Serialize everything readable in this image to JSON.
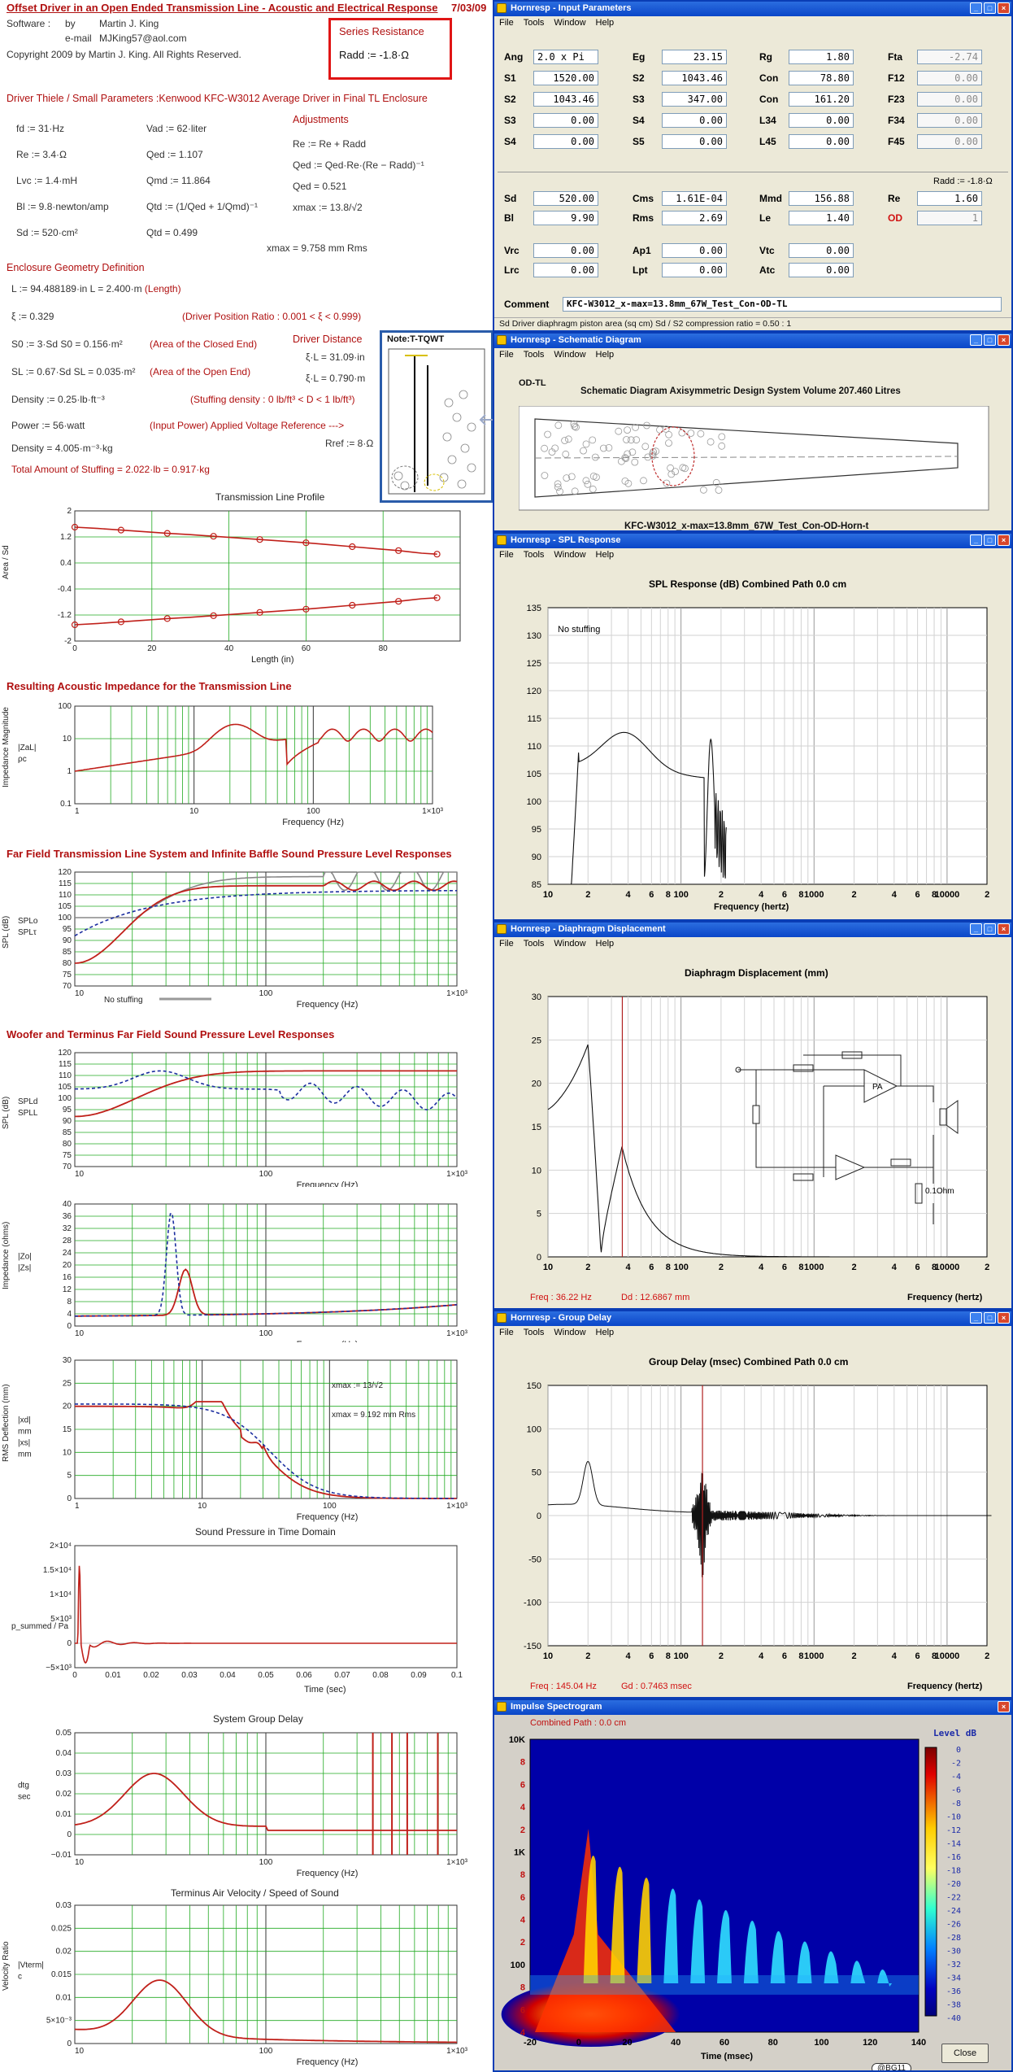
{
  "worksheet": {
    "title": "Offset Driver in an Open Ended Transmission Line - Acoustic and Electrical Response",
    "date": "7/03/09",
    "software_label": "Software :",
    "by_label": "by",
    "author": "Martin J. King",
    "email_label": "e-mail",
    "email": "MJKing57@aol.com",
    "copyright": "Copyright 2009 by Martin J. King. All Rights Reserved.",
    "series_resistance": {
      "label": "Series Resistance",
      "value": "Radd := -1.8·Ω"
    },
    "driver_heading": "Driver Thiele / Small Parameters :Kenwood KFC-W3012 Average Driver in Final TL Enclosure",
    "params_left": [
      "fd := 31·Hz",
      "Re := 3.4·Ω",
      "Lvc := 1.4·mH",
      "Bl := 9.8·newton/amp",
      "Sd := 520·cm²"
    ],
    "params_mid": [
      "Vad := 62·liter",
      "Qed := 1.107",
      "Qmd := 11.864",
      "Qtd := (1/Qed + 1/Qmd)⁻¹",
      "Qtd = 0.499"
    ],
    "adjust_heading": "Adjustments",
    "params_adj": [
      "Re := Re + Radd",
      "Qed := Qed·Re·(Re − Radd)⁻¹",
      "Qed = 0.521",
      "xmax := 13.8/√2",
      "xmax = 9.758    mm    Rms"
    ],
    "geometry_heading": "Enclosure Geometry Definition",
    "geometry": [
      {
        "expr": "L := 94.488189·in    L = 2.400·m",
        "note": "(Length)"
      },
      {
        "expr": "ξ := 0.329",
        "note": "(Driver Position Ratio : 0.001 < ξ < 0.999)"
      },
      {
        "expr": "S0 := 3·Sd    S0 = 0.156·m²",
        "note": "(Area of the Closed End)"
      },
      {
        "expr": "SL := 0.67·Sd    SL = 0.035·m²",
        "note": "(Area of the Open End)"
      },
      {
        "expr": "Density := 0.25·lb·ft⁻³",
        "note": "(Stuffing density : 0 lb/ft³ < D < 1 lb/ft³)"
      },
      {
        "expr": "Power := 56·watt",
        "note": "(Input Power)   Applied Voltage Reference --->"
      },
      {
        "expr": "Density = 4.005·m⁻³·kg",
        "note": ""
      },
      {
        "expr": "Total Amount of Stuffing  = 2.022·lb = 0.917·kg",
        "note": ""
      }
    ],
    "driver_distance": {
      "heading": "Driver Distance",
      "d1": "ξ·L = 31.09·in",
      "d2": "ξ·L = 0.790·m",
      "vref": "Rref := 8·Ω"
    },
    "note_title": "Note:T-TQWT",
    "plots": {
      "tl_profile": {
        "title": "Transmission Line Profile",
        "xlabel": "Length (in)",
        "ylabel": "Area / Sd"
      },
      "impedance": {
        "heading": "Resulting Acoustic Impedance for the Transmission Line",
        "xlabel": "Frequency (Hz)",
        "ylabel": "Impedance Magnitude",
        "ylabel2": "|ZaL| / ρc"
      },
      "far_field": {
        "heading": "Far Field Transmission Line System and Infinite Baffle Sound Pressure Level Responses",
        "xlabel": "Frequency (Hz)",
        "ylabel": "SPL (dB)",
        "legend": "No stuffing"
      },
      "woofer_terminus": {
        "heading": "Woofer and Terminus Far Field Sound Pressure Level Responses",
        "xlabel": "Frequency (Hz)",
        "ylabel": "SPL (dB)"
      },
      "elec_imp": {
        "xlabel": "Frequency (Hz)",
        "ylabel": "Impedance (ohms)"
      },
      "rms_defl": {
        "xlabel": "Frequency (Hz)",
        "ylabel": "RMS Deflection (mm)",
        "note1": "xmax := 13/√2",
        "note2": "xmax = 9.192    mm    Rms"
      },
      "time_domain": {
        "title": "Sound Pressure in Time Domain",
        "xlabel": "Time (sec)",
        "ylabel": "p_summed / Pa"
      },
      "group_delay": {
        "title": "System Group Delay",
        "xlabel": "Frequency (Hz)",
        "ylabel": "dtg / sec"
      },
      "air_velocity": {
        "title": "Terminus Air Velocity / Speed of Sound",
        "xlabel": "Frequency (Hz)",
        "ylabel": "Velocity Ratio"
      }
    }
  },
  "hornresp": {
    "menu": [
      "File",
      "Tools",
      "Window",
      "Help"
    ],
    "input": {
      "title": "Hornresp - Input Parameters",
      "rows": [
        [
          [
            "Ang",
            "2.0 x Pi"
          ],
          [
            "Eg",
            "23.15"
          ],
          [
            "Rg",
            "1.80"
          ],
          [
            "Fta",
            "-2.74"
          ]
        ],
        [
          [
            "S1",
            "1520.00"
          ],
          [
            "S2",
            "1043.46"
          ],
          [
            "Con",
            "78.80"
          ],
          [
            "F12",
            "0.00"
          ]
        ],
        [
          [
            "S2",
            "1043.46"
          ],
          [
            "S3",
            "347.00"
          ],
          [
            "Con",
            "161.20"
          ],
          [
            "F23",
            "0.00"
          ]
        ],
        [
          [
            "S3",
            "0.00"
          ],
          [
            "S4",
            "0.00"
          ],
          [
            "L34",
            "0.00"
          ],
          [
            "F34",
            "0.00"
          ]
        ],
        [
          [
            "S4",
            "0.00"
          ],
          [
            "S5",
            "0.00"
          ],
          [
            "L45",
            "0.00"
          ],
          [
            "F45",
            "0.00"
          ]
        ]
      ],
      "radd": "Radd := -1.8·Ω",
      "rows2": [
        [
          [
            "Sd",
            "520.00"
          ],
          [
            "Cms",
            "1.61E-04"
          ],
          [
            "Mmd",
            "156.88"
          ],
          [
            "Re",
            "1.60"
          ]
        ],
        [
          [
            "Bl",
            "9.90"
          ],
          [
            "Rms",
            "2.69"
          ],
          [
            "Le",
            "1.40"
          ],
          [
            "OD",
            "1"
          ]
        ]
      ],
      "rows3": [
        [
          [
            "Vrc",
            "0.00"
          ],
          [
            "Ap1",
            "0.00"
          ],
          [
            "Vtc",
            "0.00"
          ]
        ],
        [
          [
            "Lrc",
            "0.00"
          ],
          [
            "Lpt",
            "0.00"
          ],
          [
            "Atc",
            "0.00"
          ]
        ]
      ],
      "comment_label": "Comment",
      "comment": "KFC-W3012_x-max=13.8mm_67W_Test_Con-OD-TL",
      "status": "Sd   Driver diaphragm piston area (sq cm)   Sd / S2 compression ratio = 0.50 : 1"
    },
    "schematic": {
      "title": "Hornresp - Schematic Diagram",
      "label": "OD-TL",
      "heading": "Schematic Diagram    Axisymmetric Design    System Volume 207.460 Litres",
      "caption": "KFC-W3012_x-max=13.8mm_67W_Test_Con-OD-Horn-t"
    },
    "spl": {
      "title": "Hornresp - SPL Response",
      "heading": "SPL Response (dB)   Combined   Path 0.0 cm",
      "note": "No stuffing",
      "xlabel": "Frequency (hertz)"
    },
    "displacement": {
      "title": "Hornresp - Diaphragm Displacement",
      "heading": "Diaphragm Displacement (mm)",
      "freq": "Freq : 36.22 Hz",
      "dd": "Dd : 12.6867 mm",
      "xlabel": "Frequency (hertz)",
      "pa": "PA",
      "ohm": "0.1Ohm"
    },
    "groupdelay": {
      "title": "Hornresp - Group Delay",
      "heading": "Group Delay (msec)   Combined   Path 0.0 cm",
      "freq": "Freq : 145.04 Hz",
      "gd": "Gd : 0.7463 msec",
      "xlabel": "Frequency (hertz)"
    },
    "spectrogram": {
      "title": "Impulse Spectrogram",
      "subtitle": "Combined    Path : 0.0 cm",
      "level_label": "Level  dB",
      "xlabel": "Time (msec)",
      "close": "Close",
      "badge": "@BG11"
    }
  },
  "chart_data": [
    {
      "id": "tl_profile",
      "type": "line",
      "title": "Transmission Line Profile",
      "xlabel": "Length (in)",
      "ylabel": "Area / Sd",
      "x": [
        0,
        6,
        12,
        18,
        24,
        30,
        36,
        42,
        48,
        54,
        60,
        66,
        72,
        78,
        84,
        90,
        94
      ],
      "series": [
        {
          "name": "upper",
          "values": [
            1.5,
            1.46,
            1.41,
            1.36,
            1.31,
            1.27,
            1.22,
            1.17,
            1.12,
            1.07,
            1.02,
            0.96,
            0.9,
            0.84,
            0.78,
            0.7,
            0.67
          ]
        },
        {
          "name": "lower",
          "values": [
            -1.5,
            -1.46,
            -1.41,
            -1.36,
            -1.31,
            -1.27,
            -1.22,
            -1.17,
            -1.12,
            -1.07,
            -1.02,
            -0.96,
            -0.9,
            -0.84,
            -0.78,
            -0.7,
            -0.67
          ]
        }
      ],
      "xlim": [
        0,
        100
      ],
      "ylim": [
        -2,
        2
      ],
      "xticks": [
        "0",
        "20",
        "40",
        "60",
        "80"
      ],
      "yticks": [
        "2",
        "1.2",
        "0.4",
        "-0.4",
        "-1.2",
        "-2"
      ]
    },
    {
      "id": "impedance",
      "type": "line",
      "xlabel": "Frequency (Hz)",
      "xlim": [
        1,
        1000
      ],
      "ylim": [
        0.1,
        100
      ],
      "xticks": [
        "1",
        "10",
        "100",
        "1×10³"
      ],
      "yticks": [
        "100",
        "10",
        "1",
        "0.1"
      ]
    },
    {
      "id": "far_field",
      "type": "line",
      "xlabel": "Frequency (Hz)",
      "xlim": [
        10,
        1000
      ],
      "ylim": [
        70,
        120
      ],
      "xticks": [
        "10",
        "100",
        "1×10³"
      ],
      "yticks": [
        "120",
        "115",
        "110",
        "105",
        "100",
        "95",
        "90",
        "85",
        "80",
        "75",
        "70"
      ]
    },
    {
      "id": "woofer_terminus",
      "type": "line",
      "xlabel": "Frequency (Hz)",
      "xlim": [
        10,
        1000
      ],
      "ylim": [
        70,
        120
      ],
      "xticks": [
        "10",
        "100",
        "1×10³"
      ],
      "yticks": [
        "120",
        "115",
        "110",
        "105",
        "100",
        "95",
        "90",
        "85",
        "80",
        "75",
        "70"
      ]
    },
    {
      "id": "elec_imp",
      "type": "line",
      "xlabel": "Frequency (Hz)",
      "xlim": [
        10,
        1000
      ],
      "ylim": [
        0,
        40
      ],
      "xticks": [
        "10",
        "100",
        "1×10³"
      ],
      "yticks": [
        "40",
        "36",
        "32",
        "28",
        "24",
        "20",
        "16",
        "12",
        "8",
        "4",
        "0"
      ]
    },
    {
      "id": "rms_defl",
      "type": "line",
      "xlabel": "Frequency (Hz)",
      "xlim": [
        1,
        1000
      ],
      "ylim": [
        0,
        30
      ],
      "xticks": [
        "1",
        "10",
        "100",
        "1×10³"
      ],
      "yticks": [
        "30",
        "25",
        "20",
        "15",
        "10",
        "5",
        "0"
      ]
    },
    {
      "id": "time_domain",
      "type": "line",
      "xlabel": "Time (sec)",
      "xlim": [
        0,
        0.1
      ],
      "ylim": [
        -5000,
        20000
      ],
      "xticks": [
        "0",
        "0.01",
        "0.02",
        "0.03",
        "0.04",
        "0.05",
        "0.06",
        "0.07",
        "0.08",
        "0.09",
        "0.1"
      ],
      "yticks": [
        "2×10⁴",
        "1.5×10⁴",
        "1×10⁴",
        "5×10³",
        "0",
        "−5×10³"
      ]
    },
    {
      "id": "group_delay",
      "type": "line",
      "xlabel": "Frequency (Hz)",
      "xlim": [
        10,
        1000
      ],
      "ylim": [
        -0.01,
        0.05
      ],
      "xticks": [
        "10",
        "100",
        "1×10³"
      ],
      "yticks": [
        "0.05",
        "0.04",
        "0.03",
        "0.02",
        "0.01",
        "0",
        "−0.01"
      ]
    },
    {
      "id": "air_velocity",
      "type": "line",
      "xlabel": "Frequency (Hz)",
      "xlim": [
        10,
        1000
      ],
      "ylim": [
        0,
        0.03
      ],
      "xticks": [
        "10",
        "100",
        "1×10³"
      ],
      "yticks": [
        "0.03",
        "0.025",
        "0.02",
        "0.015",
        "0.01",
        "5×10⁻³",
        "0"
      ]
    },
    {
      "id": "hr_spl",
      "type": "line",
      "xlabel": "Frequency (hertz)",
      "ylim": [
        85,
        135
      ],
      "xticks": [
        "10",
        "2",
        "4",
        "6",
        "8",
        "100",
        "2",
        "4",
        "6",
        "8",
        "1000",
        "2",
        "4",
        "6",
        "8",
        "10000",
        "2"
      ],
      "yticks": [
        "135",
        "130",
        "125",
        "120",
        "115",
        "110",
        "105",
        "100",
        "95",
        "90",
        "85"
      ]
    },
    {
      "id": "hr_disp",
      "type": "line",
      "xlabel": "Frequency (hertz)",
      "ylim": [
        0,
        30
      ],
      "xticks": [
        "10",
        "2",
        "4",
        "6",
        "8",
        "100",
        "2",
        "4",
        "6",
        "8",
        "1000",
        "2",
        "4",
        "6",
        "8",
        "10000",
        "2"
      ],
      "yticks": [
        "30",
        "25",
        "20",
        "15",
        "10",
        "5",
        "0"
      ]
    },
    {
      "id": "hr_gd",
      "type": "line",
      "xlabel": "Frequency (hertz)",
      "ylim": [
        -150,
        150
      ],
      "xticks": [
        "10",
        "2",
        "4",
        "6",
        "8",
        "100",
        "2",
        "4",
        "6",
        "8",
        "1000",
        "2",
        "4",
        "6",
        "8",
        "10000",
        "2"
      ],
      "yticks": [
        "150",
        "100",
        "50",
        "0",
        "-50",
        "-100",
        "-150"
      ]
    },
    {
      "id": "spectrogram",
      "type": "heatmap",
      "xlabel": "Time (msec)",
      "xticks": [
        "-20",
        "0",
        "20",
        "40",
        "60",
        "80",
        "100",
        "120",
        "140"
      ],
      "yticks": [
        "10K",
        "8",
        "6",
        "4",
        "2",
        "1K",
        "8",
        "6",
        "4",
        "2",
        "100",
        "8",
        "6",
        "4"
      ],
      "levels": [
        "0",
        "-2",
        "-4",
        "-6",
        "-8",
        "-10",
        "-12",
        "-14",
        "-16",
        "-18",
        "-20",
        "-22",
        "-24",
        "-26",
        "-28",
        "-30",
        "-32",
        "-34",
        "-36",
        "-38",
        "-40"
      ]
    }
  ],
  "colors": {
    "accent_red": "#b01010",
    "curve_red": "#c0201a",
    "grid_green": "#22aa22",
    "xp_blue": "#0a46c8"
  }
}
